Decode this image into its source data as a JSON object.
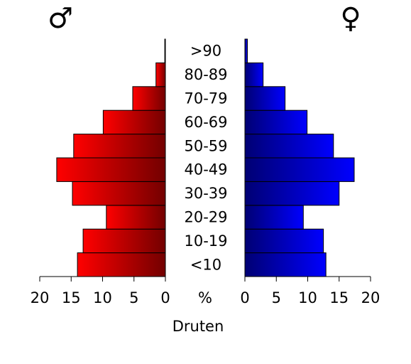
{
  "chart_data": {
    "type": "pyramid",
    "categories": [
      "<10",
      "10-19",
      "20-29",
      "30-39",
      "40-49",
      "50-59",
      "60-69",
      "70-79",
      "80-89",
      ">90"
    ],
    "series": [
      {
        "name": "♂",
        "color": "#ff0000",
        "values": [
          14.0,
          13.1,
          9.4,
          14.8,
          17.3,
          14.6,
          9.9,
          5.2,
          1.5,
          0.1
        ]
      },
      {
        "name": "♀",
        "color": "#0000ff",
        "values": [
          12.9,
          12.5,
          9.3,
          15.0,
          17.4,
          14.1,
          9.9,
          6.4,
          2.9,
          0.4
        ]
      }
    ],
    "xlim": [
      0,
      20
    ],
    "xticks": [
      0,
      5,
      10,
      15,
      20
    ],
    "axis_label": "%",
    "xlabel": "Druten"
  }
}
